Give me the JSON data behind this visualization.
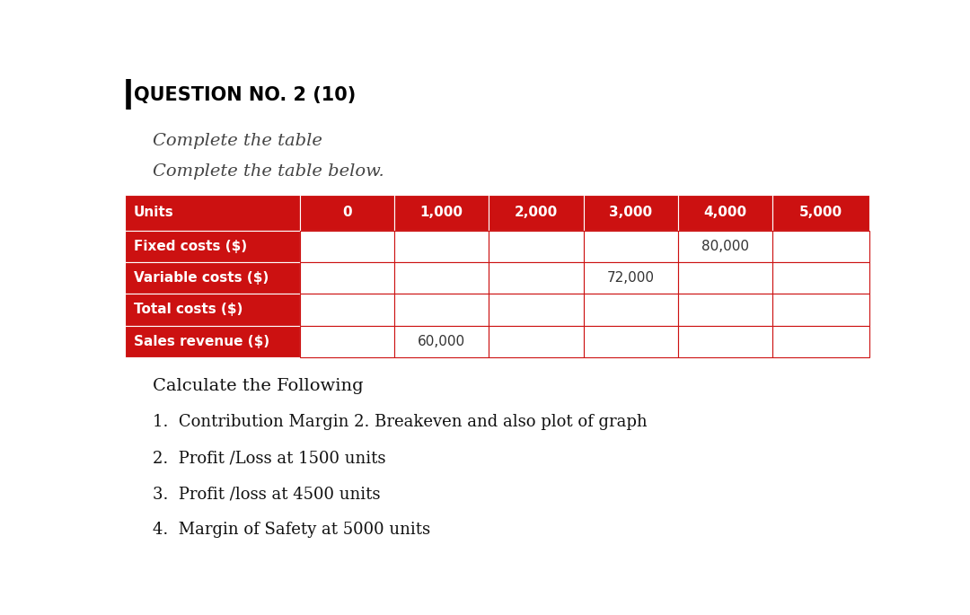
{
  "title": "QUESTION NO. 2 (10)",
  "subtitle1": "Complete the table",
  "subtitle2": "Complete the table below.",
  "header_color": "#cc1111",
  "header_text_color": "#ffffff",
  "row_label_color": "#cc1111",
  "row_label_text_color": "#ffffff",
  "cell_fill_color": "#ffffff",
  "cell_border_color": "#cc1111",
  "columns": [
    "Units",
    "0",
    "1,000",
    "2,000",
    "3,000",
    "4,000",
    "5,000"
  ],
  "rows": [
    "Fixed costs ($)",
    "Variable costs ($)",
    "Total costs ($)",
    "Sales revenue ($)"
  ],
  "given_values": {
    "Fixed costs ($)_4,000": "80,000",
    "Variable costs ($)_3,000": "72,000",
    "Sales revenue ($)_1,000": "60,000"
  },
  "calculate_heading": "Calculate the Following",
  "items": [
    "Contribution Margin 2. Breakeven and also plot of graph",
    "Profit /Loss at 1500 units",
    "Profit /loss at 4500 units",
    "Margin of Safety at 5000 units"
  ],
  "bg_color": "#ffffff",
  "font_size_title": 15,
  "font_size_subtitle": 14,
  "font_size_body": 13,
  "font_size_table_header": 11,
  "font_size_table_row": 11
}
